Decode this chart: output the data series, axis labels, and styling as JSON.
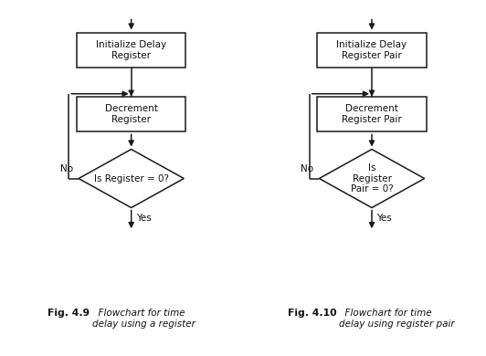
{
  "background_color": "#ffffff",
  "fig1": {
    "caption_bold": "Fig. 4.9",
    "caption_italic": "Flowchart for time\ndelay using a register",
    "box1_text": "Initialize Delay\nRegister",
    "box2_text": "Decrement\nRegister",
    "diamond_text": "Is Register = 0?",
    "no_label": "No",
    "yes_label": "Yes"
  },
  "fig2": {
    "caption_bold": "Fig. 4.10",
    "caption_italic": "Flowchart for time\ndelay using register pair",
    "box1_text": "Initialize Delay\nRegister Pair",
    "box2_text": "Decrement\nRegister Pair",
    "diamond_text": "Is\nRegister\nPair = 0?",
    "no_label": "No",
    "yes_label": "Yes"
  },
  "box_color": "#ffffff",
  "edge_color": "#1a1a1a",
  "text_color": "#111111",
  "arrow_color": "#1a1a1a",
  "line_width": 1.1,
  "font_size": 7.5
}
